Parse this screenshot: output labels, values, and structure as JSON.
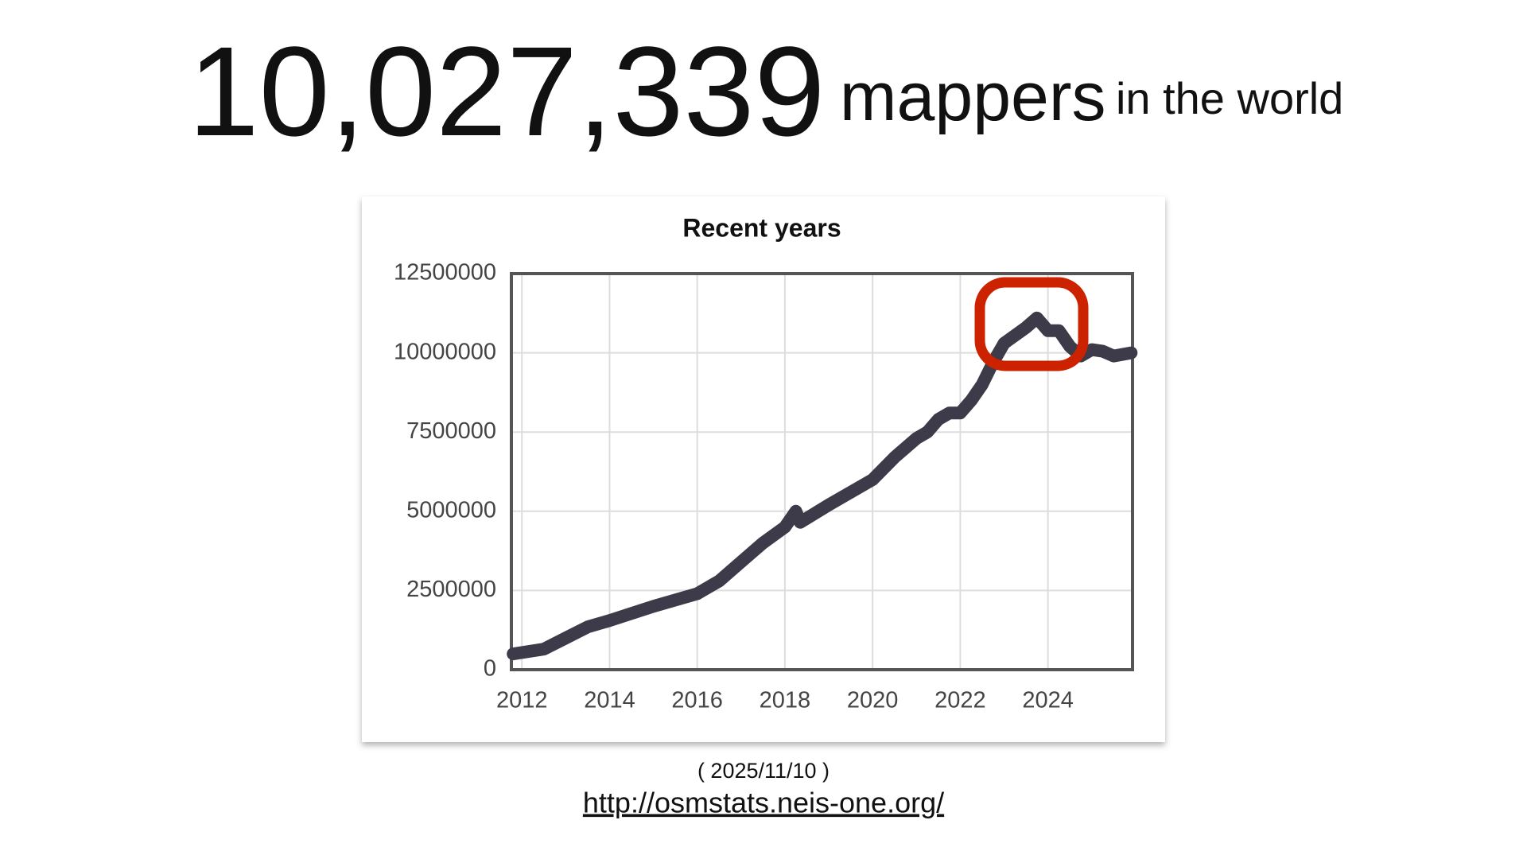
{
  "headline": {
    "number": "10,027,339",
    "unit": "mappers",
    "suffix": "in the world"
  },
  "chart_data": {
    "type": "line",
    "title": "Recent years",
    "x": [
      2011.8,
      2012.5,
      2013,
      2013.5,
      2014,
      2015,
      2016,
      2016.5,
      2017,
      2017.5,
      2018,
      2018.25,
      2018.35,
      2019,
      2020,
      2020.5,
      2021,
      2021.25,
      2021.5,
      2021.75,
      2022,
      2022.25,
      2022.5,
      2022.75,
      2023,
      2023.5,
      2023.75,
      2024,
      2024.25,
      2024.5,
      2024.75,
      2025,
      2025.25,
      2025.5,
      2025.9
    ],
    "values": [
      500000,
      650000,
      1000000,
      1350000,
      1550000,
      2000000,
      2400000,
      2800000,
      3400000,
      4000000,
      4500000,
      5000000,
      4650000,
      5200000,
      6000000,
      6700000,
      7300000,
      7500000,
      7900000,
      8100000,
      8100000,
      8500000,
      9000000,
      9700000,
      10300000,
      10800000,
      11100000,
      10700000,
      10700000,
      10200000,
      9900000,
      10100000,
      10050000,
      9900000,
      10000000
    ],
    "color": "#3d3a4a",
    "xlim": [
      2011.76,
      2025.93
    ],
    "xticks": [
      2012,
      2014,
      2016,
      2018,
      2020,
      2022,
      2024
    ],
    "ylim": [
      0,
      12500000
    ],
    "yticks": [
      0,
      2500000,
      5000000,
      7500000,
      10000000,
      12500000
    ],
    "grid": true
  },
  "date": "( 2025/11/10 )",
  "url": "http://osmstats.neis-one.org/"
}
